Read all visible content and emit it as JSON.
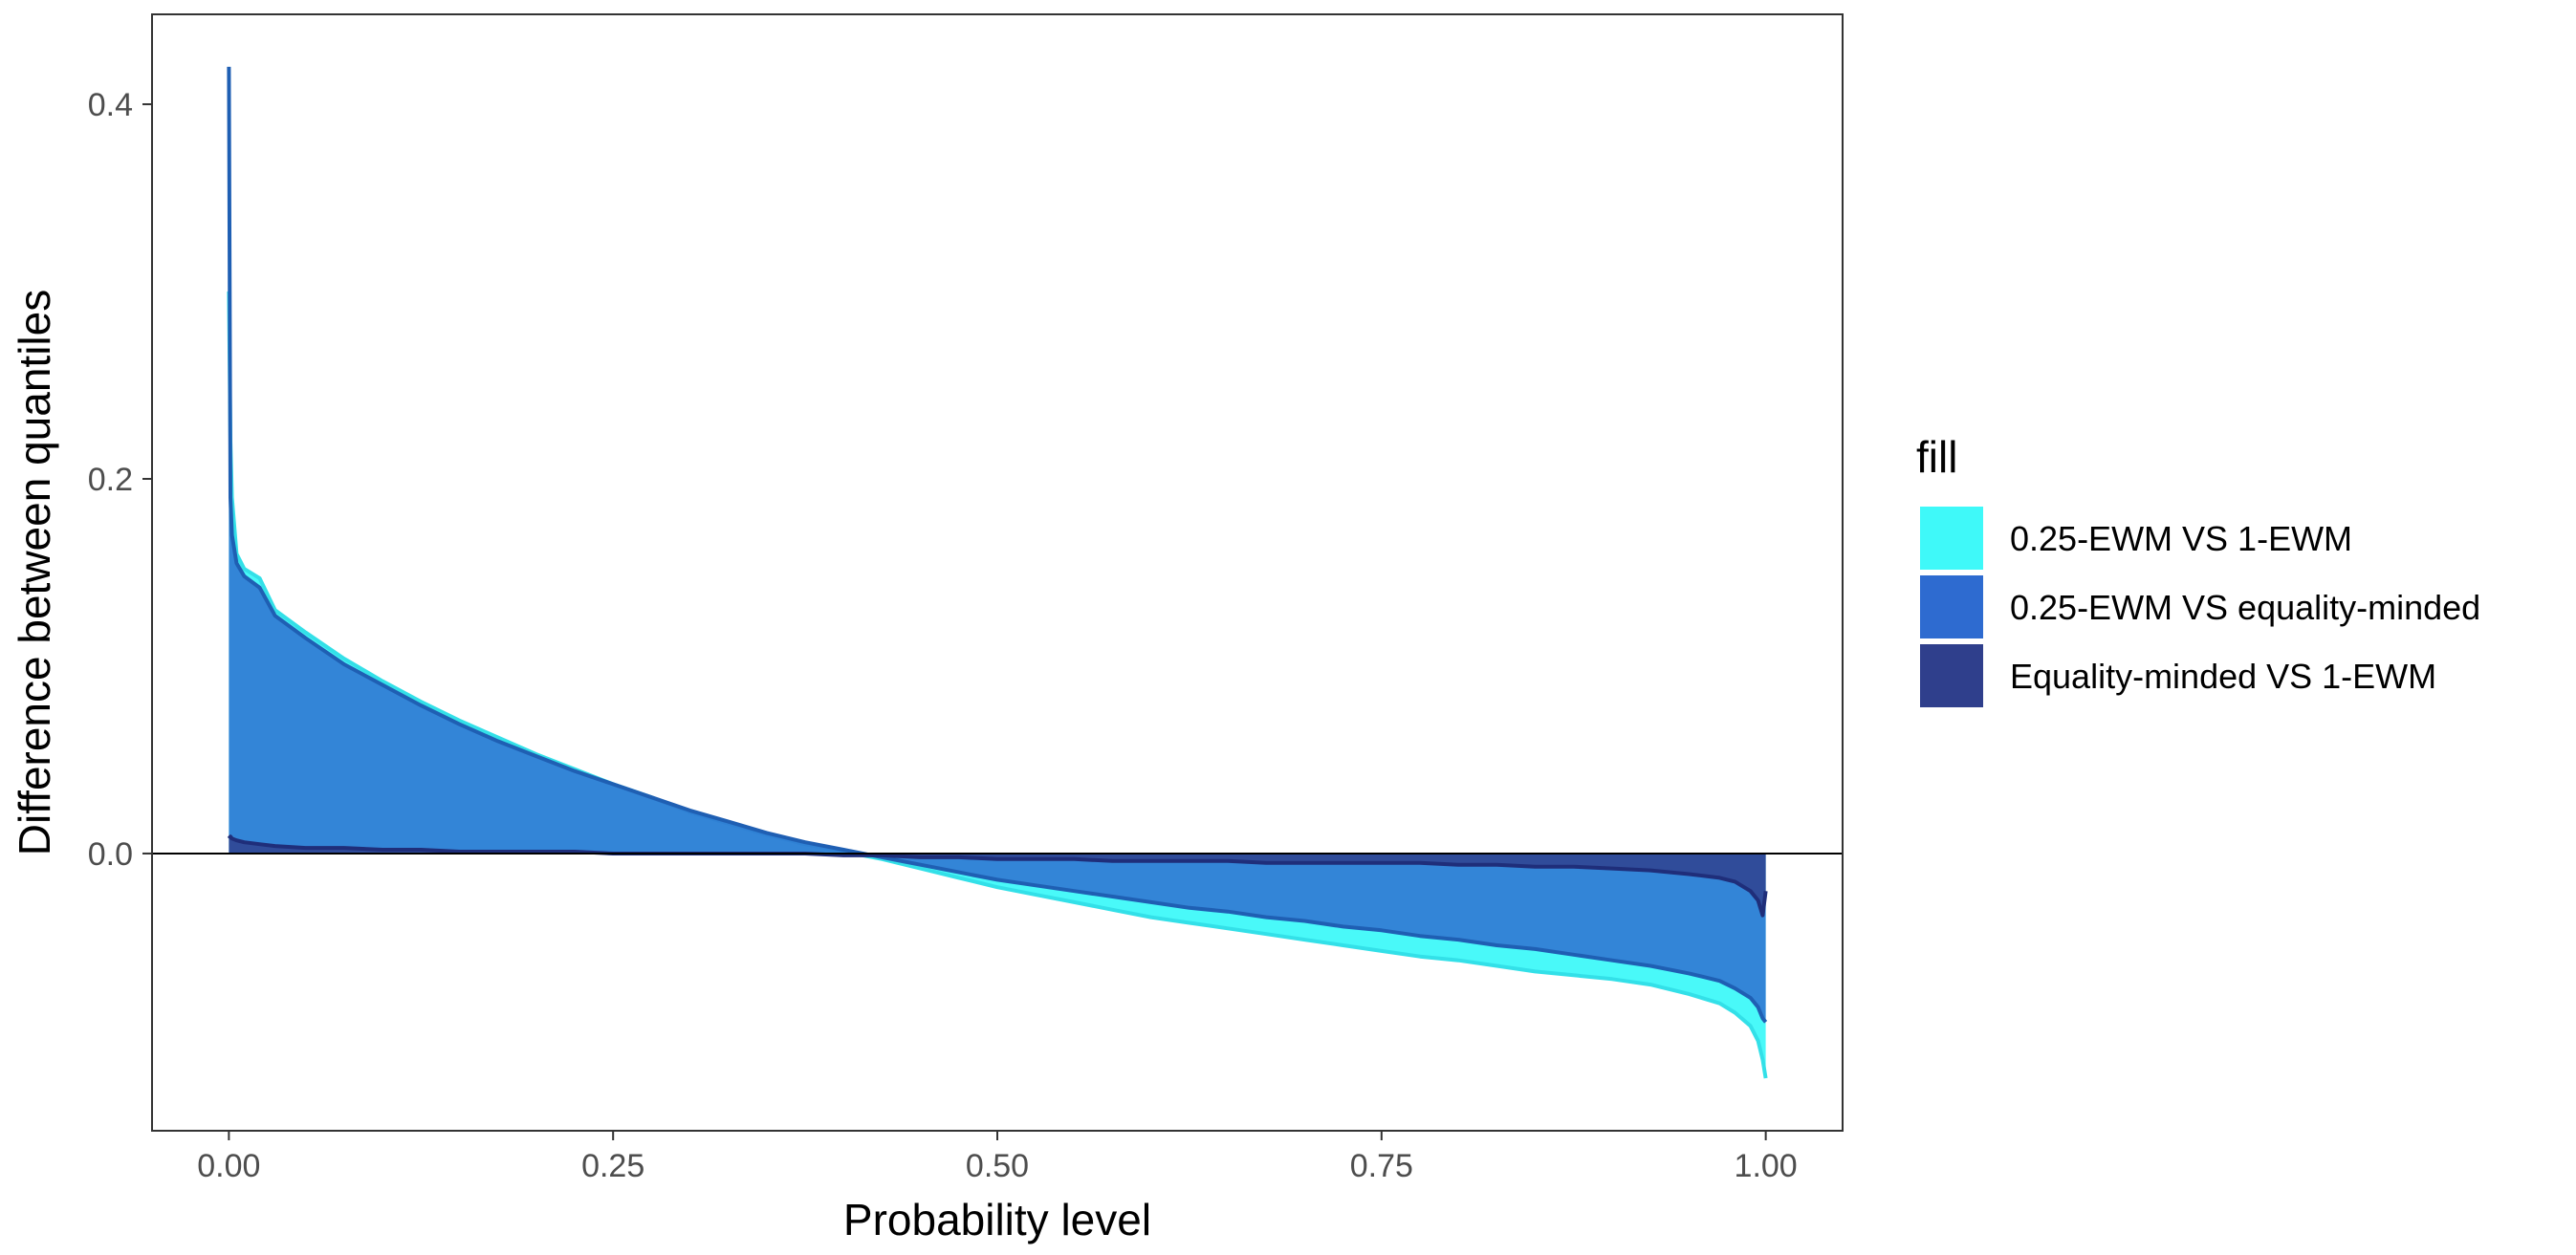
{
  "chart_data": {
    "type": "area",
    "xlabel": "Probability level",
    "ylabel": "Difference between quantiles",
    "xlim": [
      -0.05,
      1.05
    ],
    "ylim": [
      -0.148,
      0.448
    ],
    "x_ticks": [
      0.0,
      0.25,
      0.5,
      0.75,
      1.0
    ],
    "x_tick_labels": [
      "0.00",
      "0.25",
      "0.50",
      "0.75",
      "1.00"
    ],
    "y_ticks": [
      0.0,
      0.2,
      0.4
    ],
    "y_tick_labels": [
      "0.0",
      "0.2",
      "0.4"
    ],
    "reference_line_y": 0,
    "grid": false,
    "legend": {
      "title": "fill",
      "placement": "right"
    },
    "series": [
      {
        "name": "0.25-EWM VS 1-EWM",
        "fill_color": "#3ff9f9",
        "line_color": "#33e0e8",
        "x": [
          0,
          0.001,
          0.002,
          0.005,
          0.01,
          0.02,
          0.03,
          0.05,
          0.075,
          0.1,
          0.125,
          0.15,
          0.175,
          0.2,
          0.225,
          0.25,
          0.275,
          0.3,
          0.325,
          0.35,
          0.375,
          0.4,
          0.425,
          0.45,
          0.475,
          0.5,
          0.525,
          0.55,
          0.575,
          0.6,
          0.625,
          0.65,
          0.675,
          0.7,
          0.725,
          0.75,
          0.775,
          0.8,
          0.825,
          0.85,
          0.875,
          0.9,
          0.925,
          0.95,
          0.97,
          0.98,
          0.99,
          0.995,
          0.998,
          1.0
        ],
        "y": [
          0.3,
          0.22,
          0.19,
          0.16,
          0.152,
          0.147,
          0.13,
          0.118,
          0.104,
          0.092,
          0.081,
          0.071,
          0.062,
          0.053,
          0.045,
          0.037,
          0.03,
          0.022,
          0.016,
          0.01,
          0.005,
          0.001,
          -0.003,
          -0.008,
          -0.013,
          -0.018,
          -0.022,
          -0.026,
          -0.03,
          -0.034,
          -0.037,
          -0.04,
          -0.043,
          -0.046,
          -0.049,
          -0.052,
          -0.055,
          -0.057,
          -0.06,
          -0.063,
          -0.065,
          -0.067,
          -0.07,
          -0.075,
          -0.08,
          -0.085,
          -0.092,
          -0.1,
          -0.11,
          -0.12
        ]
      },
      {
        "name": "0.25-EWM VS equality-minded",
        "fill_color": "#2e6bd0",
        "line_color": "#1f5fb3",
        "x": [
          0,
          0.001,
          0.002,
          0.005,
          0.01,
          0.02,
          0.03,
          0.05,
          0.075,
          0.1,
          0.125,
          0.15,
          0.175,
          0.2,
          0.225,
          0.25,
          0.275,
          0.3,
          0.325,
          0.35,
          0.375,
          0.4,
          0.425,
          0.45,
          0.475,
          0.5,
          0.525,
          0.55,
          0.575,
          0.6,
          0.625,
          0.65,
          0.675,
          0.7,
          0.725,
          0.75,
          0.775,
          0.8,
          0.825,
          0.85,
          0.875,
          0.9,
          0.925,
          0.95,
          0.97,
          0.98,
          0.99,
          0.995,
          0.998,
          1.0
        ],
        "y": [
          0.42,
          0.19,
          0.17,
          0.155,
          0.148,
          0.142,
          0.127,
          0.115,
          0.101,
          0.09,
          0.079,
          0.069,
          0.06,
          0.052,
          0.044,
          0.037,
          0.03,
          0.023,
          0.017,
          0.011,
          0.006,
          0.002,
          -0.002,
          -0.006,
          -0.01,
          -0.014,
          -0.017,
          -0.02,
          -0.023,
          -0.026,
          -0.029,
          -0.031,
          -0.034,
          -0.036,
          -0.039,
          -0.041,
          -0.044,
          -0.046,
          -0.049,
          -0.051,
          -0.054,
          -0.057,
          -0.06,
          -0.064,
          -0.068,
          -0.072,
          -0.077,
          -0.082,
          -0.088,
          -0.09
        ]
      },
      {
        "name": "Equality-minded VS 1-EWM",
        "fill_color": "#2f3f8c",
        "line_color": "#1f2e7a",
        "x": [
          0,
          0.001,
          0.002,
          0.005,
          0.01,
          0.02,
          0.03,
          0.05,
          0.075,
          0.1,
          0.125,
          0.15,
          0.175,
          0.2,
          0.225,
          0.25,
          0.275,
          0.3,
          0.325,
          0.35,
          0.375,
          0.4,
          0.425,
          0.45,
          0.475,
          0.5,
          0.525,
          0.55,
          0.575,
          0.6,
          0.625,
          0.65,
          0.675,
          0.7,
          0.725,
          0.75,
          0.775,
          0.8,
          0.825,
          0.85,
          0.875,
          0.9,
          0.925,
          0.95,
          0.97,
          0.98,
          0.99,
          0.995,
          0.998,
          1.0
        ],
        "y": [
          0.008,
          0.009,
          0.008,
          0.007,
          0.006,
          0.005,
          0.004,
          0.003,
          0.003,
          0.002,
          0.002,
          0.001,
          0.001,
          0.001,
          0.001,
          0.0,
          0.0,
          0.0,
          0.0,
          0.0,
          0.0,
          -0.001,
          -0.001,
          -0.002,
          -0.002,
          -0.003,
          -0.003,
          -0.003,
          -0.004,
          -0.004,
          -0.004,
          -0.004,
          -0.005,
          -0.005,
          -0.005,
          -0.005,
          -0.005,
          -0.006,
          -0.006,
          -0.007,
          -0.007,
          -0.008,
          -0.009,
          -0.011,
          -0.013,
          -0.015,
          -0.02,
          -0.025,
          -0.033,
          -0.02
        ]
      }
    ]
  }
}
